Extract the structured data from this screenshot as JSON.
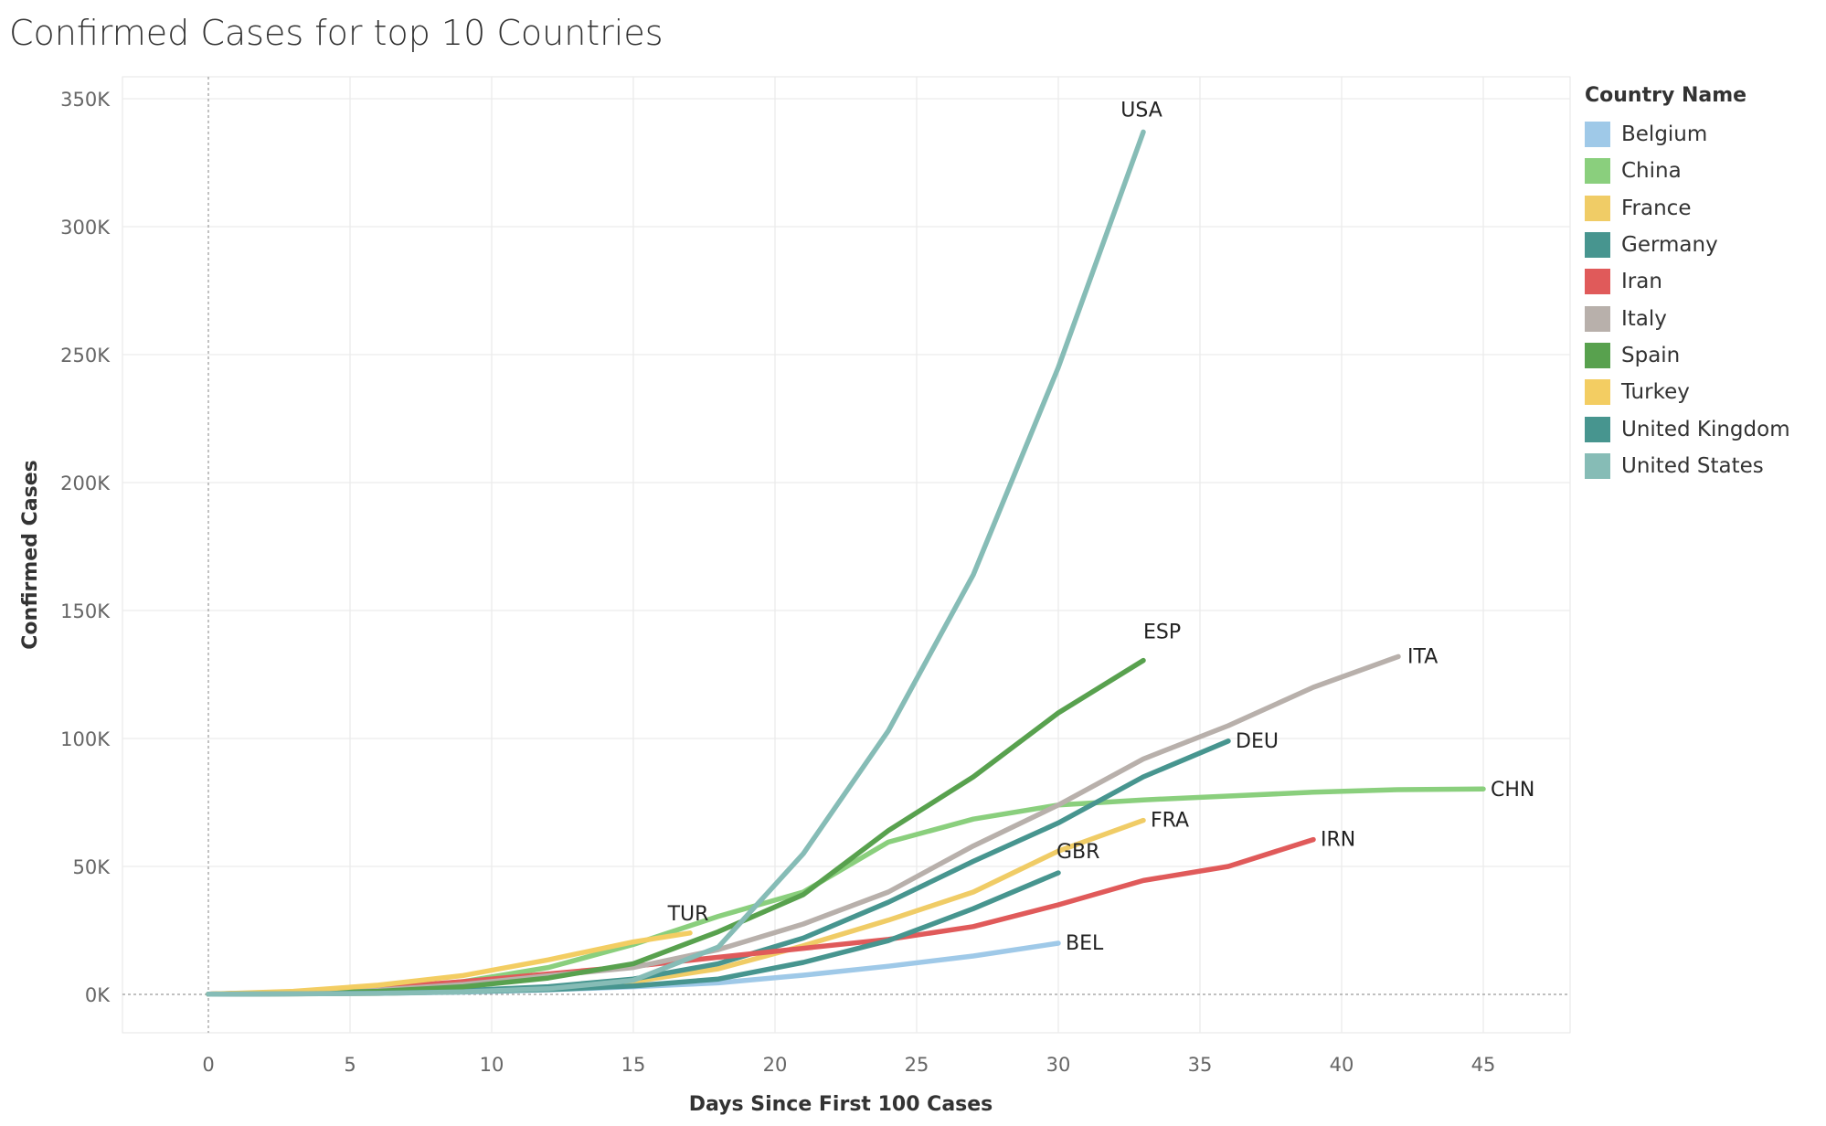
{
  "chart_data": {
    "type": "line",
    "title": "Confirmed Cases for top 10 Countries",
    "xlabel": "Days Since First 100 Cases",
    "ylabel": "Confirmed Cases",
    "xlim": [
      -3,
      48
    ],
    "ylim": [
      -18000,
      352000
    ],
    "x_ticks": [
      0,
      5,
      10,
      15,
      20,
      25,
      30,
      35,
      40,
      45
    ],
    "x_tick_labels": [
      "0",
      "5",
      "10",
      "15",
      "20",
      "25",
      "30",
      "35",
      "40",
      "45"
    ],
    "y_ticks": [
      0,
      50000,
      100000,
      150000,
      200000,
      250000,
      300000,
      350000
    ],
    "y_tick_labels": [
      "0K",
      "50K",
      "100K",
      "150K",
      "200K",
      "250K",
      "300K",
      "350K"
    ],
    "grid": true,
    "legend": {
      "title": "Country Name",
      "placement": "right"
    },
    "series": [
      {
        "name": "Belgium",
        "end_label": "BEL",
        "color": "#9fc9e8",
        "points": [
          [
            0,
            100
          ],
          [
            3,
            200
          ],
          [
            6,
            400
          ],
          [
            9,
            900
          ],
          [
            12,
            1800
          ],
          [
            15,
            3000
          ],
          [
            18,
            4500
          ],
          [
            21,
            7500
          ],
          [
            24,
            11000
          ],
          [
            27,
            15000
          ],
          [
            30,
            20000
          ]
        ]
      },
      {
        "name": "China",
        "end_label": "CHN",
        "color": "#8acf7d",
        "points": [
          [
            0,
            100
          ],
          [
            3,
            600
          ],
          [
            6,
            2000
          ],
          [
            9,
            5000
          ],
          [
            12,
            10500
          ],
          [
            15,
            19500
          ],
          [
            18,
            30500
          ],
          [
            21,
            40000
          ],
          [
            24,
            59500
          ],
          [
            27,
            68500
          ],
          [
            30,
            74000
          ],
          [
            33,
            76000
          ],
          [
            36,
            77500
          ],
          [
            39,
            79000
          ],
          [
            42,
            80000
          ],
          [
            45,
            80300
          ]
        ]
      },
      {
        "name": "France",
        "end_label": "FRA",
        "color": "#f0cc66",
        "points": [
          [
            0,
            100
          ],
          [
            3,
            200
          ],
          [
            6,
            400
          ],
          [
            9,
            1100
          ],
          [
            12,
            2500
          ],
          [
            15,
            5000
          ],
          [
            18,
            10000
          ],
          [
            21,
            19000
          ],
          [
            24,
            29000
          ],
          [
            27,
            40000
          ],
          [
            30,
            56000
          ],
          [
            33,
            68000
          ]
        ]
      },
      {
        "name": "Germany",
        "end_label": "DEU",
        "color": "#47958f",
        "points": [
          [
            0,
            100
          ],
          [
            3,
            300
          ],
          [
            6,
            700
          ],
          [
            9,
            1500
          ],
          [
            12,
            3000
          ],
          [
            15,
            6000
          ],
          [
            18,
            12000
          ],
          [
            21,
            22000
          ],
          [
            24,
            36000
          ],
          [
            27,
            52000
          ],
          [
            30,
            67000
          ],
          [
            33,
            85000
          ],
          [
            36,
            99000
          ]
        ]
      },
      {
        "name": "Iran",
        "end_label": "IRN",
        "color": "#e05a5a",
        "points": [
          [
            0,
            100
          ],
          [
            3,
            900
          ],
          [
            6,
            2500
          ],
          [
            9,
            5000
          ],
          [
            12,
            8000
          ],
          [
            15,
            11000
          ],
          [
            18,
            14500
          ],
          [
            21,
            18000
          ],
          [
            24,
            21500
          ],
          [
            27,
            26500
          ],
          [
            30,
            35000
          ],
          [
            33,
            44500
          ],
          [
            36,
            50000
          ],
          [
            39,
            60500
          ]
        ]
      },
      {
        "name": "Italy",
        "end_label": "ITA",
        "color": "#b8b0ab",
        "points": [
          [
            0,
            100
          ],
          [
            3,
            600
          ],
          [
            6,
            1700
          ],
          [
            9,
            3900
          ],
          [
            12,
            7300
          ],
          [
            15,
            10500
          ],
          [
            18,
            17500
          ],
          [
            21,
            27500
          ],
          [
            24,
            40000
          ],
          [
            27,
            58000
          ],
          [
            30,
            74000
          ],
          [
            33,
            92000
          ],
          [
            36,
            105000
          ],
          [
            39,
            120000
          ],
          [
            42,
            132000
          ]
        ]
      },
      {
        "name": "Spain",
        "end_label": "ESP",
        "color": "#58a14e",
        "points": [
          [
            0,
            100
          ],
          [
            3,
            400
          ],
          [
            6,
            1200
          ],
          [
            9,
            3000
          ],
          [
            12,
            6400
          ],
          [
            15,
            12000
          ],
          [
            18,
            24500
          ],
          [
            21,
            39000
          ],
          [
            24,
            64000
          ],
          [
            27,
            85000
          ],
          [
            30,
            110000
          ],
          [
            33,
            130500
          ]
        ]
      },
      {
        "name": "Turkey",
        "end_label": "TUR",
        "color": "#f3cd62",
        "points": [
          [
            0,
            100
          ],
          [
            3,
            1200
          ],
          [
            6,
            3600
          ],
          [
            9,
            7400
          ],
          [
            12,
            13500
          ],
          [
            15,
            20500
          ],
          [
            17,
            24000
          ]
        ]
      },
      {
        "name": "United Kingdom",
        "end_label": "GBR",
        "color": "#47958f",
        "points": [
          [
            0,
            100
          ],
          [
            3,
            200
          ],
          [
            6,
            500
          ],
          [
            9,
            1000
          ],
          [
            12,
            1900
          ],
          [
            15,
            3300
          ],
          [
            18,
            6000
          ],
          [
            21,
            12500
          ],
          [
            24,
            21000
          ],
          [
            27,
            33500
          ],
          [
            30,
            47500
          ]
        ]
      },
      {
        "name": "United States",
        "end_label": "USA",
        "color": "#86bcb6",
        "points": [
          [
            0,
            100
          ],
          [
            3,
            200
          ],
          [
            6,
            400
          ],
          [
            9,
            1000
          ],
          [
            12,
            2200
          ],
          [
            15,
            5500
          ],
          [
            18,
            18500
          ],
          [
            21,
            55000
          ],
          [
            24,
            103000
          ],
          [
            27,
            164000
          ],
          [
            30,
            245000
          ],
          [
            33,
            337000
          ]
        ]
      }
    ]
  }
}
